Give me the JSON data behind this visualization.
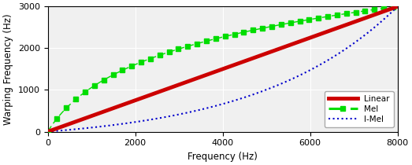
{
  "xmax": 8000,
  "ymax": 3000,
  "xlabel": "Frequency (Hz)",
  "ylabel": "Warping Frequency (Hz)",
  "linear_color": "#cc0000",
  "mel_color": "#00dd00",
  "imel_color": "#0000cc",
  "linear_lw": 3.5,
  "mel_lw": 2.2,
  "imel_lw": 1.5,
  "legend_labels": [
    "Linear",
    "Mel",
    "I-Mel"
  ],
  "xticks": [
    0,
    2000,
    4000,
    6000,
    8000
  ],
  "yticks": [
    0,
    1000,
    2000,
    3000
  ],
  "figsize": [
    5.23,
    2.1
  ],
  "dpi": 100,
  "mel_700": 700,
  "mel_2595": 2595,
  "bg_color": "#ffffff",
  "legend_loc": "lower right",
  "legend_fontsize": 7.5,
  "axis_fontsize": 8.5,
  "tick_fontsize": 8
}
